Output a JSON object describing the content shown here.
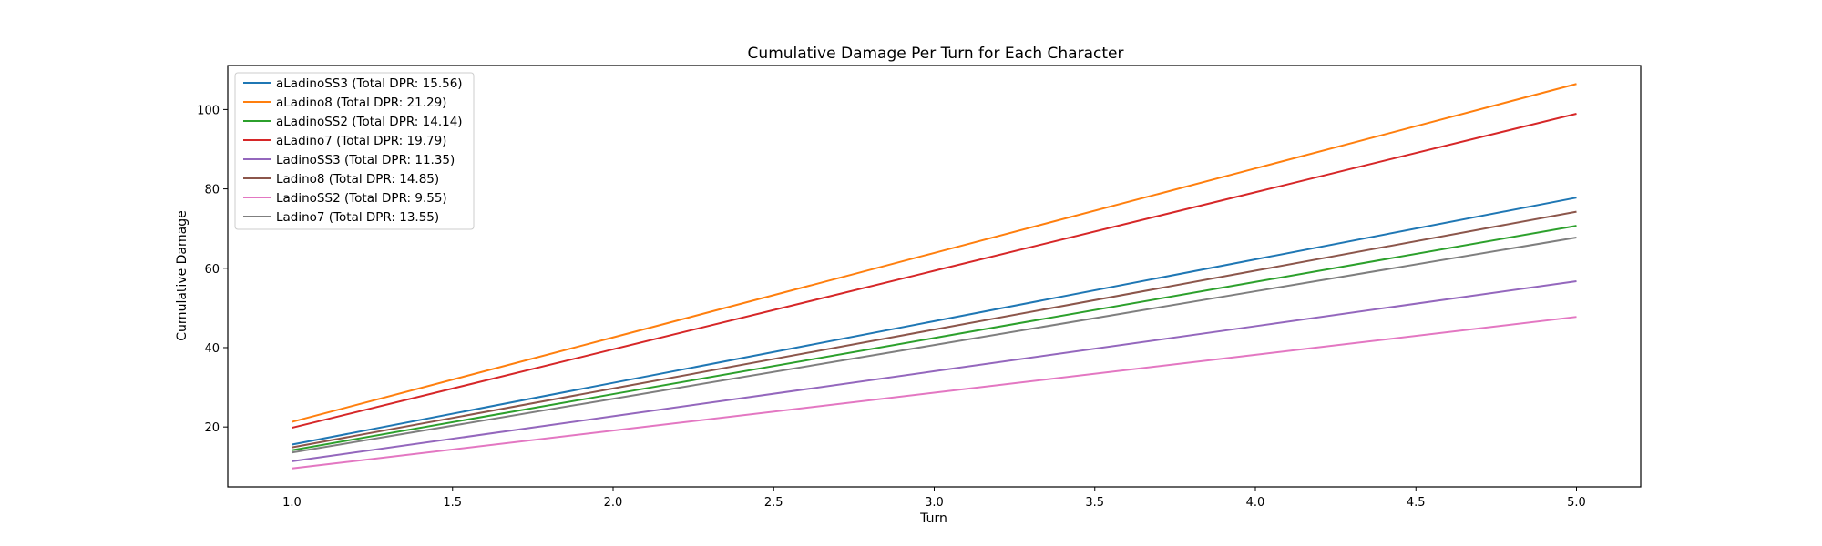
{
  "chart_data": {
    "type": "line",
    "title": "Cumulative Damage Per Turn for Each Character",
    "xlabel": "Turn",
    "ylabel": "Cumulative Damage",
    "xlim": [
      0.8,
      5.2
    ],
    "ylim": [
      4.9,
      111.1
    ],
    "xticks": [
      "1.0",
      "1.5",
      "2.0",
      "2.5",
      "3.0",
      "3.5",
      "4.0",
      "4.5",
      "5.0"
    ],
    "yticks": [
      "20",
      "40",
      "60",
      "80",
      "100"
    ],
    "grid": false,
    "legend_position": "top-left",
    "x": [
      1,
      2,
      3,
      4,
      5
    ],
    "series": [
      {
        "name": "aLadinoSS3 (Total DPR: 15.56)",
        "color": "#1f77b4",
        "values": [
          15.56,
          31.12,
          46.68,
          62.24,
          77.8
        ]
      },
      {
        "name": "aLadino8 (Total DPR: 21.29)",
        "color": "#ff7f0e",
        "values": [
          21.29,
          42.58,
          63.87,
          85.16,
          106.45
        ]
      },
      {
        "name": "aLadinoSS2 (Total DPR: 14.14)",
        "color": "#2ca02c",
        "values": [
          14.14,
          28.28,
          42.42,
          56.56,
          70.7
        ]
      },
      {
        "name": "aLadino7 (Total DPR: 19.79)",
        "color": "#d62728",
        "values": [
          19.79,
          39.58,
          59.37,
          79.16,
          98.95
        ]
      },
      {
        "name": "LadinoSS3 (Total DPR: 11.35)",
        "color": "#9467bd",
        "values": [
          11.35,
          22.7,
          34.05,
          45.4,
          56.75
        ]
      },
      {
        "name": "Ladino8 (Total DPR: 14.85)",
        "color": "#8c564b",
        "values": [
          14.85,
          29.7,
          44.55,
          59.4,
          74.25
        ]
      },
      {
        "name": "LadinoSS2 (Total DPR: 9.55)",
        "color": "#e377c2",
        "values": [
          9.55,
          19.1,
          28.65,
          38.2,
          47.75
        ]
      },
      {
        "name": "Ladino7 (Total DPR: 13.55)",
        "color": "#7f7f7f",
        "values": [
          13.55,
          27.1,
          40.65,
          54.2,
          67.75
        ]
      }
    ]
  }
}
